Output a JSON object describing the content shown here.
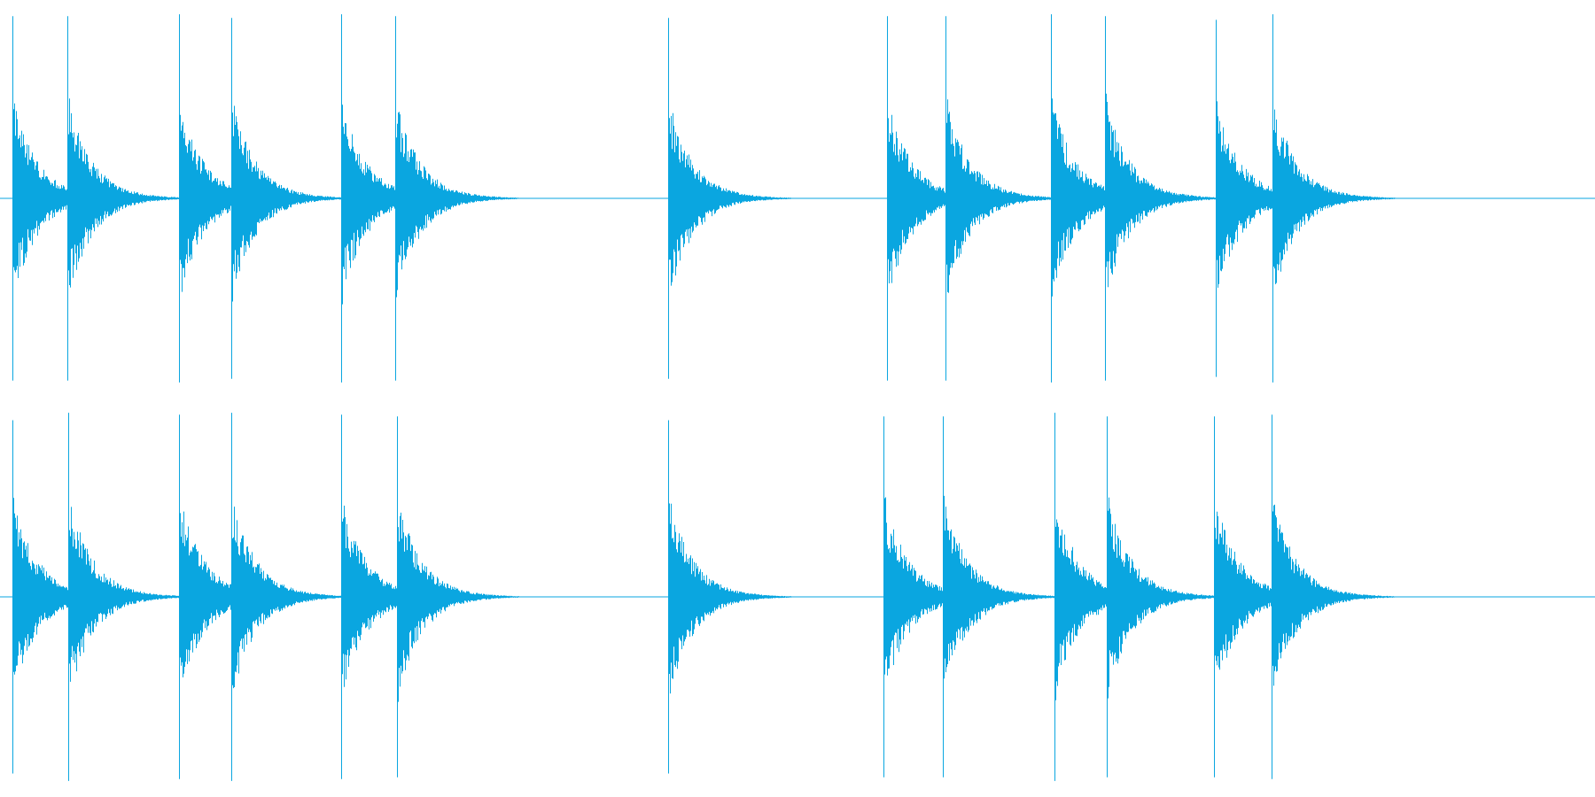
{
  "waveform": {
    "color": "#0aa6e0",
    "background": "#ffffff",
    "channel_count": 2,
    "channels": [
      {
        "name": "",
        "onsets": [
          0.008,
          0.042,
          0.112,
          0.145,
          0.214,
          0.248,
          0.419,
          0.556,
          0.593,
          0.659,
          0.693,
          0.762,
          0.798
        ],
        "peak_amplitudes": [
          0.98,
          0.98,
          0.99,
          0.97,
          0.99,
          0.98,
          0.97,
          0.98,
          0.98,
          0.99,
          0.98,
          0.96,
          0.99
        ]
      },
      {
        "name": "",
        "onsets": [
          0.008,
          0.043,
          0.112,
          0.145,
          0.214,
          0.249,
          0.419,
          0.554,
          0.591,
          0.661,
          0.694,
          0.761,
          0.797
        ],
        "peak_amplitudes": [
          0.95,
          0.99,
          0.98,
          0.99,
          0.98,
          0.97,
          0.95,
          0.97,
          0.97,
          0.99,
          0.97,
          0.97,
          0.98
        ]
      }
    ]
  }
}
